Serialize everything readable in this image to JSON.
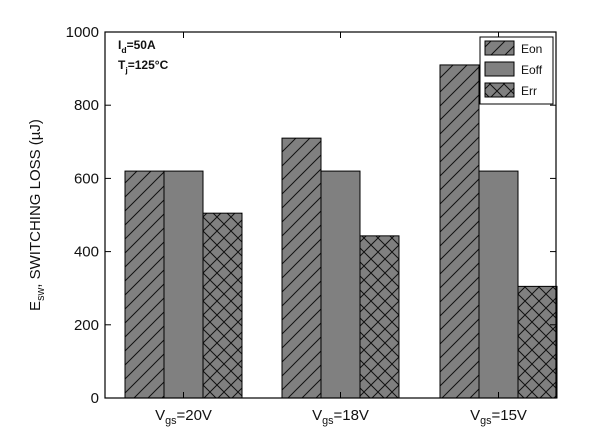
{
  "chart_data": {
    "type": "bar",
    "categories": [
      "Vgs=20V",
      "Vgs=18V",
      "Vgs=15V"
    ],
    "category_labels": [
      {
        "base": "V",
        "sub": "gs",
        "rest": "=20V"
      },
      {
        "base": "V",
        "sub": "gs",
        "rest": "=18V"
      },
      {
        "base": "V",
        "sub": "gs",
        "rest": "=15V"
      }
    ],
    "series": [
      {
        "name": "Eon",
        "values": [
          620,
          710,
          910
        ],
        "pattern": "diagonal"
      },
      {
        "name": "Eoff",
        "values": [
          620,
          620,
          620
        ],
        "pattern": "solid"
      },
      {
        "name": "Err",
        "values": [
          505,
          443,
          305
        ],
        "pattern": "crosshatch"
      }
    ],
    "ylim": [
      0,
      1000
    ],
    "yticks": [
      0,
      200,
      400,
      600,
      800,
      1000
    ],
    "ylabel": {
      "base": "E",
      "sub": "sw",
      "rest": ", SWITCHING LOSS (µJ)"
    },
    "conditions": [
      {
        "base": "I",
        "sub": "d",
        "rest": "=50A"
      },
      {
        "base": "T",
        "sub": "j",
        "rest": "=125°C"
      }
    ],
    "legend_position": "top-right",
    "grid": false,
    "bar_color": "#808080",
    "edge_color": "#000000"
  }
}
